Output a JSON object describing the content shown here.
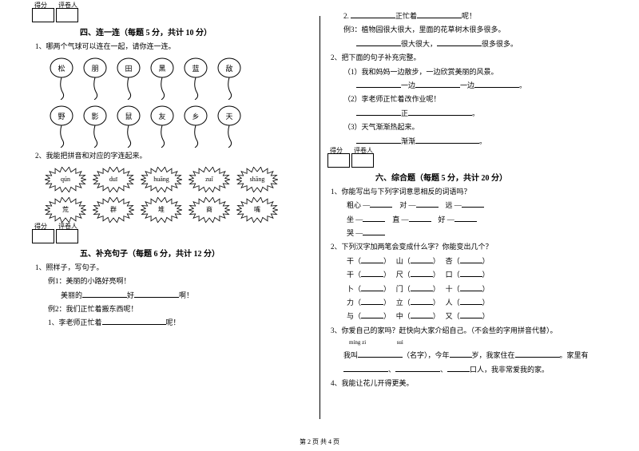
{
  "section4": {
    "score_labels": [
      "得分",
      "评卷人"
    ],
    "title": "四、连一连（每题 5 分，共计 10 分）",
    "q1": "1、哪两个气球可以连在一起，请你连一连。",
    "balloons_row1": [
      "松",
      "朋",
      "田",
      "黑",
      "蓝",
      "敌"
    ],
    "balloons_row2": [
      "野",
      "影",
      "鼠",
      "友",
      "乡",
      "天"
    ],
    "q2": "2、我能把拼音和对应的字连起来。",
    "suns_row1": [
      "qún",
      "duī",
      "huāng",
      "zuǐ",
      "shāng"
    ],
    "suns_row2": [
      "荒",
      "群",
      "堆",
      "商",
      "嘴"
    ]
  },
  "section5": {
    "title": "五、补充句子（每题 6 分，共计 12 分）",
    "q1": "1、照样子，写句子。",
    "ex1a": "例1：美丽的小路好亮啊！",
    "ex1b_pre": "美丽的",
    "ex1b_mid": "好",
    "ex1b_end": "啊！",
    "ex2a": "例2：我们正忙着搬东西呢！",
    "ex2b_pre": "1、李老师正忙着",
    "ex2b_end": "呢！",
    "r2_pre": "2. ",
    "r2_mid": "正忙着",
    "r2_end": "呢！",
    "ex3a": "例3：植物园很大很大，里面的花草树木很多很多。",
    "ex3b_mid1": "很大很大，",
    "ex3b_mid2": "很多很多。",
    "q2": "2、把下面的句子补充完整。",
    "q2_1": "（1）我和妈妈一边散步，一边欣赏美丽的风景。",
    "q2_1b_mid": "一边",
    "q2_1b_end": "一边",
    "q2_2": "（2）李老师正忙着改作业呢！",
    "q2_2b_mid": "正",
    "q2_2b_end": "。",
    "q2_3": "（3）天气渐渐热起来。",
    "q2_3b_mid": "渐渐",
    "q2_3b_end": "。"
  },
  "section6": {
    "title": "六、综合题（每题 5 分，共计 20 分）",
    "q1": "1、你能写出与下列字词意思相反的词语吗？",
    "pairs": [
      [
        "粗心 —",
        "对 —",
        "远 —"
      ],
      [
        "坐 —",
        "直 —",
        "好 —"
      ],
      [
        "哭 —",
        "",
        ""
      ]
    ],
    "q2": "2、下列汉字加两笔会变成什么字？你能变出几个？",
    "rows": [
      [
        "干（",
        "）",
        "山（",
        "）",
        "杏（",
        "）"
      ],
      [
        "干（",
        "）",
        "尺（",
        "）",
        "口（",
        "）"
      ],
      [
        "卜（",
        "）",
        "门（",
        "）",
        "十（",
        "）"
      ],
      [
        "力（",
        "）",
        "立（",
        "）",
        "人（",
        "）"
      ],
      [
        "与（",
        "）",
        "中（",
        "）",
        "又（",
        "）"
      ]
    ],
    "q3": "3、你爱自己的家吗？赶快向大家介绍自己。（不会些的字用拼音代替）。",
    "q3_p1": "míng zi",
    "q3_p2": "suì",
    "q3_line_a": "我叫",
    "q3_line_b": "（名字），今年",
    "q3_line_c": "岁，我家住在",
    "q3_line_d": "。家里有",
    "q3_line_e": "、",
    "q3_line_f": "、",
    "q3_line_g": "口人，我非常爱我的家。",
    "q4": "4、我能让花儿开得更美。"
  },
  "footer": "第 2 页 共 4 页"
}
